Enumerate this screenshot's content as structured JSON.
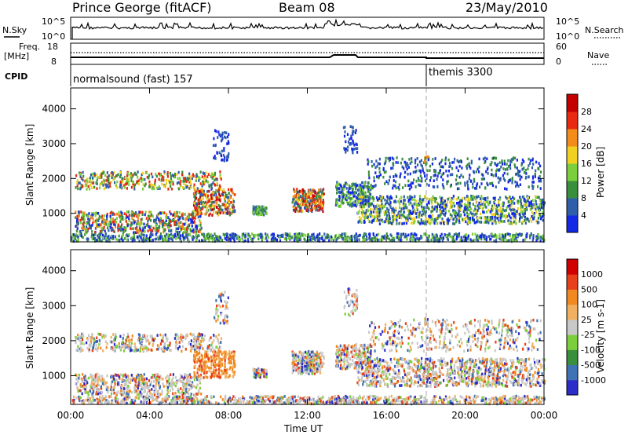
{
  "header": {
    "station": "Prince George (fitACF)",
    "beam": "Beam 08",
    "date": "23/May/2010"
  },
  "status_panels": {
    "nsky_label": "N.Sky",
    "nsky_ticks": [
      "10^5",
      "10^0"
    ],
    "nsearch_label": "N.Search",
    "nsearch_ticks": [
      "10^5",
      "10^0"
    ],
    "freq_label_line1": "Freq.",
    "freq_label_line2": "[MHz]",
    "freq_ticks": [
      "18",
      "8"
    ],
    "nave_label": "Nave",
    "nave_ticks": [
      "60",
      "0"
    ],
    "cpid_label": "CPID",
    "cpid_segments": [
      {
        "label": "normalsound (fast) 157",
        "start_hour": 0
      },
      {
        "label": "themis 3300",
        "start_hour": 18
      }
    ]
  },
  "chart_data": [
    {
      "type": "heatmap",
      "panel": "power",
      "ylabel": "Slant Range [km]",
      "ylim": [
        180,
        4600
      ],
      "yticks": [
        1000,
        2000,
        3000,
        4000
      ],
      "xlim": [
        0,
        24
      ],
      "colorbar": {
        "label": "Power [dB]",
        "ticks": [
          "4",
          "8",
          "12",
          "16",
          "20",
          "24",
          "28"
        ],
        "colors": [
          "#1428e6",
          "#2f5fa8",
          "#3a8f3c",
          "#7ccf3c",
          "#f0d020",
          "#f28c1a",
          "#e82a12",
          "#c40000"
        ]
      }
    },
    {
      "type": "heatmap",
      "panel": "velocity",
      "ylabel": "Slant Range [km]",
      "ylim": [
        180,
        4600
      ],
      "yticks": [
        1000,
        2000,
        3000,
        4000
      ],
      "xlim": [
        0,
        24
      ],
      "xlabel": "Time UT",
      "xticks": [
        "00:00",
        "04:00",
        "08:00",
        "12:00",
        "16:00",
        "20:00",
        "00:00"
      ],
      "colorbar": {
        "label": "Velocity [m s-1]",
        "ticks": [
          "1000",
          "500",
          "100",
          "25",
          "-25",
          "-100",
          "-500",
          "-1000"
        ],
        "colors": [
          "#2c2cc8",
          "#3f73b4",
          "#3a8f3c",
          "#7ccf3c",
          "#c8c8c8",
          "#f0b060",
          "#f08a20",
          "#e8401a",
          "#d00000"
        ]
      }
    }
  ]
}
